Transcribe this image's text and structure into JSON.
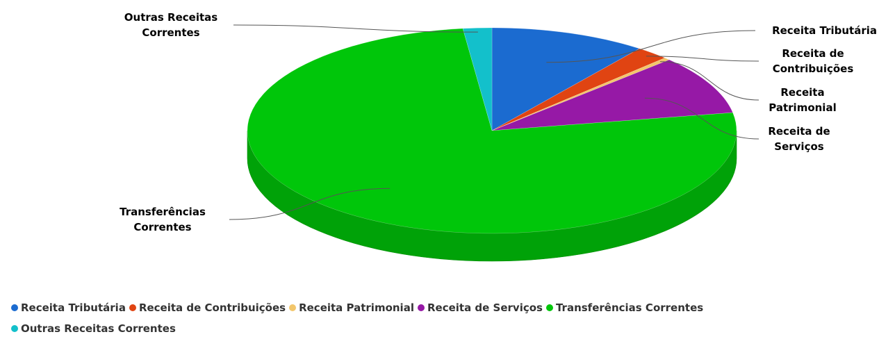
{
  "chart_data": {
    "type": "pie",
    "title": "",
    "series": [
      {
        "name": "Receita Tributária",
        "value": 10.3,
        "color": "#1b6bd0"
      },
      {
        "name": "Receita de Contribuições",
        "value": 2.2,
        "color": "#e04412"
      },
      {
        "name": "Receita Patrimonial",
        "value": 0.4,
        "color": "#f2c66b"
      },
      {
        "name": "Receita de Serviços",
        "value": 9.3,
        "color": "#9619a6"
      },
      {
        "name": "Transferências Correntes",
        "value": 75.9,
        "color": "#00c60a"
      },
      {
        "name": "Outras Receitas Correntes",
        "value": 1.9,
        "color": "#13c0cb"
      }
    ],
    "labels": [
      [
        "Receita Tributária"
      ],
      [
        "Receita de",
        "Contribuições"
      ],
      [
        "Receita",
        "Patrimonial"
      ],
      [
        "Receita de",
        "Serviços"
      ],
      [
        "Transferências",
        "Correntes"
      ],
      [
        "Outras Receitas",
        "Correntes"
      ]
    ],
    "legend_placement": "bottom-left",
    "style": "3d"
  }
}
